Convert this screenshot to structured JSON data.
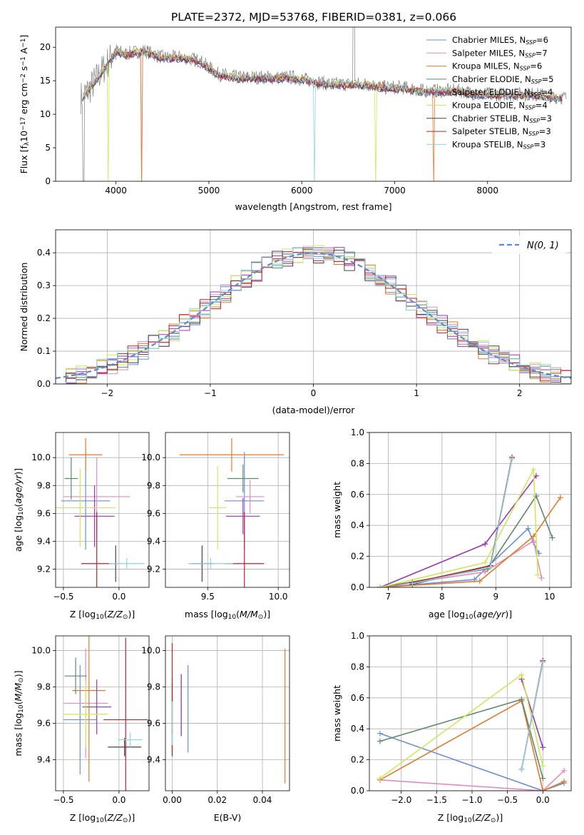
{
  "title": "PLATE=2372, MJD=53768, FIBERID=0381, z=0.066",
  "colors": {
    "Chabrier MILES": "#6a8fd8",
    "Salpeter MILES": "#e38cc0",
    "Kroupa MILES": "#e07b2e",
    "Chabrier ELODIE": "#5f8a6a",
    "Salpeter ELODIE": "#9a35b5",
    "Kroupa ELODIE": "#cfe85a",
    "Chabrier STELIB": "#444444",
    "Salpeter STELIB": "#c0202a",
    "Kroupa STELIB": "#8fd6dc",
    "data": "#808080",
    "normal": "#5b8bd6"
  },
  "chart_data": [
    {
      "id": "spectrum",
      "type": "line",
      "xlabel": "wavelength [Angstrom, rest frame]",
      "ylabel": "Flux [f",
      "xlim": [
        3350,
        8900
      ],
      "ylim": [
        0,
        23
      ],
      "xticks": [
        "4000",
        "5000",
        "6000",
        "7000",
        "8000"
      ],
      "yticks": [
        "0",
        "5",
        "10",
        "15",
        "20"
      ],
      "legend_position": "top-right",
      "series": [
        {
          "name": "Chabrier MILES, N"
        },
        {
          "name": "Salpeter MILES, N"
        },
        {
          "name": "Kroupa MILES, N"
        },
        {
          "name": "Chabrier ELODIE, N"
        },
        {
          "name": "Salpeter ELODIE, N"
        },
        {
          "name": "Kroupa ELODIE, N"
        },
        {
          "name": "Chabrier STELIB, N"
        },
        {
          "name": "Salpeter STELIB, N"
        },
        {
          "name": "Kroupa STELIB, N"
        }
      ],
      "nssp": [
        "=6",
        "=7",
        "=6",
        "=5",
        "=4",
        "=4",
        "=3",
        "=3",
        "=3"
      ],
      "continuum": {
        "x": [
          3620,
          3700,
          3800,
          3900,
          4000,
          4100,
          4300,
          4500,
          4700,
          4900,
          5100,
          5300,
          5500,
          5700,
          5900,
          6100,
          6300,
          6500,
          6700,
          6900,
          7100,
          7300,
          7500,
          7700,
          7900,
          8100,
          8300,
          8500,
          8800
        ],
        "y": [
          12.5,
          13.5,
          15.5,
          17.5,
          19.5,
          19.0,
          19.5,
          18.5,
          18.5,
          18.0,
          16.0,
          15.5,
          15.5,
          15.5,
          15.5,
          15.0,
          14.5,
          14.5,
          14.5,
          14.0,
          14.0,
          13.5,
          13.5,
          13.5,
          13.0,
          13.0,
          13.0,
          13.0,
          12.5
        ]
      }
    },
    {
      "id": "residuals",
      "type": "histogram",
      "xlabel": "(data-model)/error",
      "ylabel": "Normed distribution",
      "xlim": [
        -2.5,
        2.5
      ],
      "ylim": [
        0,
        0.47
      ],
      "xticks": [
        "−2",
        "−1",
        "0",
        "1",
        "2"
      ],
      "yticks": [
        "0.0",
        "0.1",
        "0.2",
        "0.3",
        "0.4"
      ],
      "legend": "N(0, 1)",
      "bin_width": 0.1
    },
    {
      "id": "age-vs-Z",
      "type": "scatter",
      "xlabel": "Z [log",
      "ylabel": "age  [log",
      "xlim": [
        -0.57,
        0.27
      ],
      "ylim": [
        9.07,
        10.18
      ],
      "xticks": [
        "−0.5",
        "0.0"
      ],
      "yticks": [
        "9.2",
        "9.4",
        "9.6",
        "9.8",
        "10.0"
      ],
      "points": [
        {
          "name": "Chabrier MILES",
          "x": -0.3,
          "y": 9.69,
          "xerr": 0.22,
          "yerr": 0.35
        },
        {
          "name": "Salpeter MILES",
          "x": -0.2,
          "y": 9.72,
          "xerr": 0.3,
          "yerr": 0.28
        },
        {
          "name": "Kroupa MILES",
          "x": -0.3,
          "y": 10.02,
          "xerr": 0.15,
          "yerr": 0.12
        },
        {
          "name": "Chabrier ELODIE",
          "x": -0.43,
          "y": 9.85,
          "xerr": 0.06,
          "yerr": 0.15
        },
        {
          "name": "Salpeter ELODIE",
          "x": -0.22,
          "y": 9.58,
          "xerr": 0.18,
          "yerr": 0.22
        },
        {
          "name": "Kroupa ELODIE",
          "x": -0.35,
          "y": 9.64,
          "xerr": 0.32,
          "yerr": 0.28
        },
        {
          "name": "Chabrier STELIB",
          "x": -0.03,
          "y": 9.24,
          "xerr": 0.02,
          "yerr": 0.13
        },
        {
          "name": "Salpeter STELIB",
          "x": -0.2,
          "y": 9.24,
          "xerr": 0.14,
          "yerr": 0.37
        },
        {
          "name": "Kroupa STELIB",
          "x": 0.07,
          "y": 9.24,
          "xerr": 0.16,
          "yerr": 0.04
        }
      ]
    },
    {
      "id": "age-vs-mass",
      "type": "scatter",
      "xlabel": "mass [log",
      "ylabel": "",
      "xlim": [
        9.2,
        10.08
      ],
      "ylim": [
        9.07,
        10.18
      ],
      "xticks": [
        "9.5",
        "10.0"
      ],
      "yticks": [
        "9.2",
        "9.4",
        "9.6",
        "9.8",
        "10.0"
      ],
      "points": [
        {
          "name": "Chabrier MILES",
          "x": 9.76,
          "y": 9.69,
          "xerr": 0.14,
          "yerr": 0.35
        },
        {
          "name": "Salpeter MILES",
          "x": 9.8,
          "y": 9.72,
          "xerr": 0.1,
          "yerr": 0.12
        },
        {
          "name": "Kroupa MILES",
          "x": 9.67,
          "y": 10.02,
          "xerr": 0.37,
          "yerr": 0.12
        },
        {
          "name": "Chabrier ELODIE",
          "x": 9.75,
          "y": 9.85,
          "xerr": 0.11,
          "yerr": 0.1
        },
        {
          "name": "Salpeter ELODIE",
          "x": 9.75,
          "y": 9.58,
          "xerr": 0.12,
          "yerr": 0.13
        },
        {
          "name": "Kroupa ELODIE",
          "x": 9.57,
          "y": 9.64,
          "xerr": 0.06,
          "yerr": 0.3
        },
        {
          "name": "Chabrier STELIB",
          "x": 9.46,
          "y": 9.24,
          "xerr": 0.08,
          "yerr": 0.13
        },
        {
          "name": "Salpeter STELIB",
          "x": 9.76,
          "y": 9.24,
          "xerr": 0.14,
          "yerr": 0.37
        },
        {
          "name": "Kroupa STELIB",
          "x": 9.52,
          "y": 9.24,
          "xerr": 0.16,
          "yerr": 0.04
        }
      ]
    },
    {
      "id": "mass-weight-vs-age",
      "type": "line",
      "xlabel": "age  [log",
      "ylabel": "mass weight",
      "xlim": [
        6.65,
        10.4
      ],
      "ylim": [
        0,
        1
      ],
      "xticks": [
        "7",
        "8",
        "9",
        "10"
      ],
      "yticks": [
        "0.0",
        "0.2",
        "0.4",
        "0.6",
        "0.8",
        "1.0"
      ],
      "series": [
        {
          "name": "Chabrier MILES",
          "x": [
            6.85,
            8.6,
            9.6,
            9.7,
            9.8
          ],
          "y": [
            0.0,
            0.05,
            0.38,
            0.29,
            0.22
          ]
        },
        {
          "name": "Salpeter MILES",
          "x": [
            6.85,
            8.8,
            9.7,
            9.85
          ],
          "y": [
            0.0,
            0.1,
            0.3,
            0.06
          ]
        },
        {
          "name": "Kroupa MILES",
          "x": [
            6.85,
            8.7,
            9.7,
            10.2
          ],
          "y": [
            0.0,
            0.04,
            0.33,
            0.58
          ]
        },
        {
          "name": "Chabrier ELODIE",
          "x": [
            6.85,
            8.85,
            9.75,
            10.05
          ],
          "y": [
            0.0,
            0.12,
            0.59,
            0.32
          ]
        },
        {
          "name": "Salpeter ELODIE",
          "x": [
            6.85,
            8.8,
            9.75
          ],
          "y": [
            0.0,
            0.28,
            0.72
          ]
        },
        {
          "name": "Kroupa ELODIE",
          "x": [
            6.85,
            8.8,
            9.7,
            9.78
          ],
          "y": [
            0.0,
            0.16,
            0.76,
            0.08
          ]
        },
        {
          "name": "Chabrier STELIB",
          "x": [
            7.45,
            8.9,
            9.3
          ],
          "y": [
            0.02,
            0.14,
            0.83
          ]
        },
        {
          "name": "Salpeter STELIB",
          "x": [
            7.45,
            8.9,
            9.3
          ],
          "y": [
            0.03,
            0.14,
            0.84
          ]
        },
        {
          "name": "Kroupa STELIB",
          "x": [
            7.45,
            8.9,
            9.3
          ],
          "y": [
            0.025,
            0.13,
            0.83
          ]
        }
      ]
    },
    {
      "id": "mass-vs-Z",
      "type": "scatter",
      "xlabel": "Z [log",
      "ylabel": "mass [log",
      "xlim": [
        -0.57,
        0.27
      ],
      "ylim": [
        9.23,
        10.08
      ],
      "xticks": [
        "−0.5",
        "0.0"
      ],
      "yticks": [
        "9.4",
        "9.6",
        "9.8",
        "10.0"
      ],
      "points": [
        {
          "name": "Chabrier MILES",
          "x": -0.35,
          "y": 9.62,
          "xerr": 0.15,
          "yerr": 0.3
        },
        {
          "name": "Salpeter MILES",
          "x": -0.3,
          "y": 9.71,
          "xerr": 0.2,
          "yerr": 0.3
        },
        {
          "name": "Kroupa MILES",
          "x": -0.27,
          "y": 9.78,
          "xerr": 0.15,
          "yerr": 0.5
        },
        {
          "name": "Chabrier ELODIE",
          "x": -0.39,
          "y": 9.86,
          "xerr": 0.1,
          "yerr": 0.1
        },
        {
          "name": "Salpeter ELODIE",
          "x": -0.2,
          "y": 9.69,
          "xerr": 0.13,
          "yerr": 0.15
        },
        {
          "name": "Kroupa ELODIE",
          "x": -0.3,
          "y": 9.65,
          "xerr": 0.2,
          "yerr": 0.18
        },
        {
          "name": "Chabrier STELIB",
          "x": 0.05,
          "y": 9.47,
          "xerr": 0.15,
          "yerr": 0.05
        },
        {
          "name": "Salpeter STELIB",
          "x": 0.06,
          "y": 9.62,
          "xerr": 0.2,
          "yerr": 0.45
        },
        {
          "name": "Kroupa STELIB",
          "x": 0.1,
          "y": 9.51,
          "xerr": 0.11,
          "yerr": 0.04
        }
      ]
    },
    {
      "id": "mass-vs-EBV",
      "type": "scatter",
      "xlabel": "E(B-V)",
      "ylabel": "",
      "xlim": [
        -0.003,
        0.052
      ],
      "ylim": [
        9.23,
        10.08
      ],
      "xticks": [
        "0.00",
        "0.02",
        "0.04"
      ],
      "yticks": [
        "9.4",
        "9.6",
        "9.8",
        "10.0"
      ],
      "points": [
        {
          "name": "Chabrier MILES",
          "x": 0.007,
          "y": 9.68,
          "xerr": 0,
          "yerr": 0.24
        },
        {
          "name": "Salpeter MILES",
          "x": 0.004,
          "y": 9.7,
          "xerr": 0,
          "yerr": 0.17
        },
        {
          "name": "Kroupa MILES",
          "x": 0.05,
          "y": 9.64,
          "xerr": 0,
          "yerr": 0.37
        },
        {
          "name": "Chabrier ELODIE",
          "x": 0.0,
          "y": 9.7,
          "xerr": 0,
          "yerr": 0.15
        },
        {
          "name": "Salpeter ELODIE",
          "x": 0.004,
          "y": 9.7,
          "xerr": 0,
          "yerr": 0.17
        },
        {
          "name": "Kroupa ELODIE",
          "x": 0.0,
          "y": 9.64,
          "xerr": 0,
          "yerr": 0.18
        },
        {
          "name": "Chabrier STELIB",
          "x": 0.0,
          "y": 9.62,
          "xerr": 0,
          "yerr": 0.2
        },
        {
          "name": "Salpeter STELIB",
          "x": 0.0,
          "y": 9.74,
          "xerr": 0,
          "yerr": 0.3
        },
        {
          "name": "Kroupa STELIB",
          "x": 0.0,
          "y": 9.6,
          "xerr": 0,
          "yerr": 0.12
        }
      ]
    },
    {
      "id": "mass-weight-vs-Z",
      "type": "line",
      "xlabel": "Z [log",
      "ylabel": "mass weight",
      "xlim": [
        -2.45,
        0.4
      ],
      "ylim": [
        0,
        1
      ],
      "xticks": [
        "−2.0",
        "−1.5",
        "−1.0",
        "−0.5",
        "0.0"
      ],
      "yticks": [
        "0.0",
        "0.2",
        "0.4",
        "0.6",
        "0.8",
        "1.0"
      ],
      "series": [
        {
          "name": "Chabrier MILES",
          "x": [
            -2.3,
            0.0,
            0.3
          ],
          "y": [
            0.37,
            0.0,
            0.05
          ]
        },
        {
          "name": "Salpeter MILES",
          "x": [
            -2.3,
            0.0,
            0.3
          ],
          "y": [
            0.07,
            0.0,
            0.13
          ]
        },
        {
          "name": "Kroupa MILES",
          "x": [
            -2.3,
            -0.3,
            0.0,
            0.3
          ],
          "y": [
            0.07,
            0.58,
            0.0,
            0.06
          ]
        },
        {
          "name": "Chabrier ELODIE",
          "x": [
            -2.3,
            -0.3,
            0.0
          ],
          "y": [
            0.32,
            0.59,
            0.08
          ]
        },
        {
          "name": "Salpeter ELODIE",
          "x": [
            -0.3,
            0.0
          ],
          "y": [
            0.72,
            0.28
          ]
        },
        {
          "name": "Kroupa ELODIE",
          "x": [
            -2.3,
            -0.3,
            0.0
          ],
          "y": [
            0.08,
            0.75,
            0.16
          ]
        },
        {
          "name": "Chabrier STELIB",
          "x": [
            -0.3,
            0.0
          ],
          "y": [
            0.14,
            0.83
          ]
        },
        {
          "name": "Salpeter STELIB",
          "x": [
            -0.3,
            0.0
          ],
          "y": [
            0.14,
            0.84
          ]
        },
        {
          "name": "Kroupa STELIB",
          "x": [
            -0.3,
            0.0
          ],
          "y": [
            0.14,
            0.83
          ]
        }
      ]
    }
  ]
}
